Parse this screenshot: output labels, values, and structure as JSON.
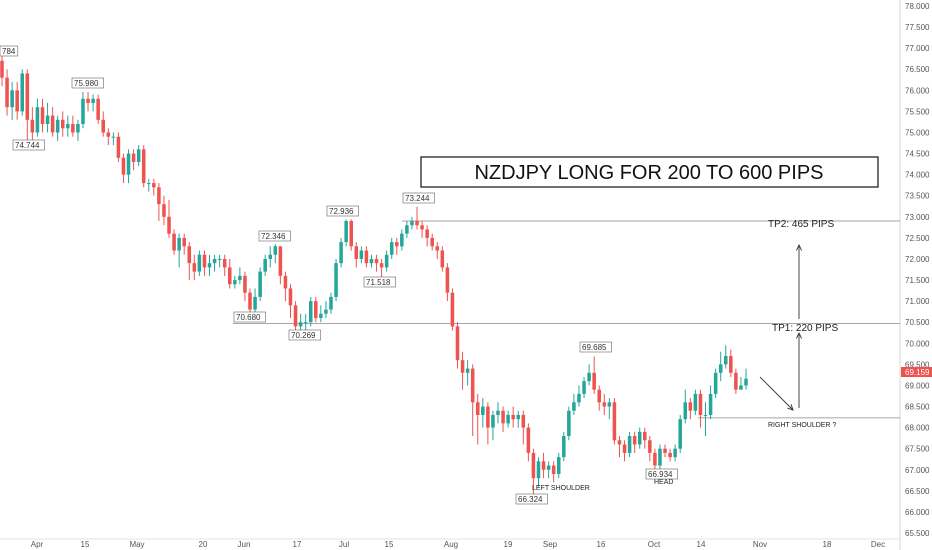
{
  "chart_data": {
    "type": "candlestick",
    "title": "NZDJPY LONG FOR 200 TO 600 PIPS",
    "symbol": "NZDJPY",
    "ylim": [
      65.5,
      78.0
    ],
    "y_ticks": [
      "65.500",
      "66.000",
      "66.500",
      "67.000",
      "67.500",
      "68.000",
      "68.500",
      "69.000",
      "69.500",
      "70.000",
      "70.500",
      "71.000",
      "71.500",
      "72.000",
      "72.500",
      "73.000",
      "73.500",
      "74.000",
      "74.500",
      "75.000",
      "75.500",
      "76.000",
      "76.500",
      "77.000",
      "77.500",
      "78.000"
    ],
    "x_ticks": [
      "Apr",
      "15",
      "May",
      "20",
      "Jun",
      "17",
      "Jul",
      "15",
      "Aug",
      "19",
      "Sep",
      "16",
      "Oct",
      "14",
      "Nov",
      "18",
      "Dec"
    ],
    "last_price": "69.159",
    "up_color": "#26a69a",
    "down_color": "#ef5350",
    "candles": [
      [
        76.7,
        76.3,
        76.85,
        76.1
      ],
      [
        76.3,
        75.6,
        76.5,
        75.4
      ],
      [
        75.6,
        76.0,
        76.2,
        75.3
      ],
      [
        76.0,
        75.5,
        76.2,
        75.3
      ],
      [
        75.5,
        76.4,
        76.5,
        75.4
      ],
      [
        76.4,
        75.3,
        76.5,
        74.8
      ],
      [
        75.3,
        75.0,
        75.6,
        74.75
      ],
      [
        75.0,
        75.6,
        75.8,
        74.9
      ],
      [
        75.6,
        75.2,
        75.8,
        75.0
      ],
      [
        75.2,
        75.4,
        75.7,
        75.0
      ],
      [
        75.4,
        75.0,
        75.6,
        74.9
      ],
      [
        75.0,
        75.3,
        75.4,
        74.8
      ],
      [
        75.3,
        75.1,
        75.5,
        74.9
      ],
      [
        75.1,
        75.2,
        75.4,
        74.9
      ],
      [
        75.2,
        75.0,
        75.4,
        74.9
      ],
      [
        75.0,
        75.2,
        75.3,
        74.8
      ],
      [
        75.2,
        75.8,
        75.96,
        75.1
      ],
      [
        75.8,
        75.7,
        75.96,
        75.5
      ],
      [
        75.7,
        75.8,
        75.9,
        75.5
      ],
      [
        75.8,
        75.3,
        75.9,
        75.2
      ],
      [
        75.3,
        75.0,
        75.5,
        74.9
      ],
      [
        75.0,
        74.9,
        75.1,
        74.7
      ],
      [
        74.9,
        74.9,
        75.0,
        74.7
      ],
      [
        74.9,
        74.4,
        75.0,
        74.3
      ],
      [
        74.4,
        74.0,
        74.5,
        73.8
      ],
      [
        74.0,
        74.5,
        74.6,
        73.8
      ],
      [
        74.5,
        74.3,
        74.6,
        74.1
      ],
      [
        74.3,
        74.6,
        74.7,
        74.2
      ],
      [
        74.6,
        73.8,
        74.7,
        73.7
      ],
      [
        73.8,
        73.8,
        73.9,
        73.6
      ],
      [
        73.8,
        73.7,
        73.9,
        73.5
      ],
      [
        73.7,
        73.3,
        73.8,
        72.9
      ],
      [
        73.3,
        73.0,
        73.5,
        72.8
      ],
      [
        73.0,
        72.6,
        73.4,
        72.5
      ],
      [
        72.6,
        72.2,
        72.7,
        72.1
      ],
      [
        72.2,
        72.5,
        72.6,
        71.8
      ],
      [
        72.5,
        72.3,
        72.6,
        72.1
      ],
      [
        72.3,
        71.9,
        72.4,
        71.5
      ],
      [
        71.9,
        71.7,
        72.1,
        71.5
      ],
      [
        71.7,
        72.1,
        72.2,
        71.6
      ],
      [
        72.1,
        71.8,
        72.2,
        71.6
      ],
      [
        71.8,
        71.9,
        72.1,
        71.6
      ],
      [
        71.9,
        72.0,
        72.1,
        71.7
      ],
      [
        72.0,
        72.0,
        72.1,
        71.8
      ],
      [
        72.0,
        71.8,
        72.1,
        71.6
      ],
      [
        71.8,
        71.4,
        72.0,
        71.3
      ],
      [
        71.4,
        71.5,
        71.6,
        71.3
      ],
      [
        71.5,
        71.6,
        71.8,
        71.4
      ],
      [
        71.6,
        71.2,
        71.7,
        71.0
      ],
      [
        71.2,
        70.8,
        71.3,
        70.68
      ],
      [
        70.8,
        71.1,
        71.3,
        70.7
      ],
      [
        71.1,
        71.7,
        71.8,
        71.0
      ],
      [
        71.7,
        72.0,
        72.1,
        71.6
      ],
      [
        72.0,
        72.1,
        72.3,
        71.8
      ],
      [
        72.1,
        72.3,
        72.35,
        71.9
      ],
      [
        72.3,
        71.6,
        72.3,
        71.4
      ],
      [
        71.6,
        71.3,
        71.7,
        71.0
      ],
      [
        71.3,
        70.9,
        71.4,
        70.6
      ],
      [
        70.9,
        70.4,
        71.0,
        70.27
      ],
      [
        70.4,
        70.5,
        70.7,
        70.3
      ],
      [
        70.5,
        70.5,
        70.7,
        70.3
      ],
      [
        70.5,
        71.0,
        71.1,
        70.4
      ],
      [
        71.0,
        70.6,
        71.1,
        70.5
      ],
      [
        70.6,
        70.7,
        70.9,
        70.5
      ],
      [
        70.7,
        70.8,
        71.0,
        70.6
      ],
      [
        70.8,
        71.1,
        71.2,
        70.7
      ],
      [
        71.1,
        71.9,
        72.0,
        71.0
      ],
      [
        71.9,
        72.4,
        72.5,
        71.8
      ],
      [
        72.4,
        72.9,
        72.94,
        72.3
      ],
      [
        72.9,
        72.3,
        72.94,
        72.2
      ],
      [
        72.3,
        72.0,
        72.4,
        71.8
      ],
      [
        72.0,
        72.2,
        72.3,
        71.9
      ],
      [
        72.2,
        71.9,
        72.3,
        71.8
      ],
      [
        71.9,
        72.0,
        72.1,
        71.8
      ],
      [
        72.0,
        71.9,
        72.1,
        71.7
      ],
      [
        71.9,
        71.8,
        72.0,
        71.5
      ],
      [
        71.8,
        72.1,
        72.2,
        71.7
      ],
      [
        72.1,
        72.4,
        72.5,
        72.0
      ],
      [
        72.4,
        72.3,
        72.5,
        72.1
      ],
      [
        72.3,
        72.6,
        72.7,
        72.2
      ],
      [
        72.6,
        72.8,
        72.9,
        72.5
      ],
      [
        72.8,
        72.9,
        73.0,
        72.7
      ],
      [
        72.9,
        72.8,
        73.24,
        72.7
      ],
      [
        72.8,
        72.7,
        72.9,
        72.5
      ],
      [
        72.7,
        72.5,
        72.8,
        72.3
      ],
      [
        72.5,
        72.3,
        72.6,
        72.2
      ],
      [
        72.3,
        72.2,
        72.4,
        72.0
      ],
      [
        72.2,
        71.8,
        72.3,
        71.7
      ],
      [
        71.8,
        71.2,
        71.9,
        71.0
      ],
      [
        71.2,
        70.4,
        71.3,
        70.3
      ],
      [
        70.4,
        69.6,
        70.5,
        69.4
      ],
      [
        69.6,
        69.3,
        69.8,
        68.9
      ],
      [
        69.3,
        69.4,
        69.6,
        69.0
      ],
      [
        69.4,
        68.6,
        69.5,
        67.8
      ],
      [
        68.6,
        68.3,
        68.8,
        67.6
      ],
      [
        68.3,
        68.5,
        68.7,
        68.0
      ],
      [
        68.5,
        68.0,
        68.6,
        67.6
      ],
      [
        68.0,
        68.3,
        68.4,
        67.7
      ],
      [
        68.3,
        68.4,
        68.6,
        68.1
      ],
      [
        68.4,
        68.1,
        68.5,
        67.9
      ],
      [
        68.1,
        68.3,
        68.4,
        68.0
      ],
      [
        68.3,
        68.2,
        68.5,
        68.0
      ],
      [
        68.2,
        68.3,
        68.4,
        68.0
      ],
      [
        68.3,
        68.0,
        68.4,
        67.6
      ],
      [
        68.0,
        67.4,
        68.1,
        67.2
      ],
      [
        67.4,
        66.8,
        67.5,
        66.32
      ],
      [
        66.8,
        67.2,
        67.3,
        66.6
      ],
      [
        67.2,
        67.0,
        67.4,
        66.8
      ],
      [
        67.0,
        67.1,
        67.2,
        66.8
      ],
      [
        67.1,
        66.9,
        67.2,
        66.7
      ],
      [
        66.9,
        67.3,
        67.4,
        66.8
      ],
      [
        67.3,
        67.8,
        67.9,
        67.2
      ],
      [
        67.8,
        68.4,
        68.5,
        67.7
      ],
      [
        68.4,
        68.6,
        68.8,
        68.3
      ],
      [
        68.6,
        68.8,
        69.0,
        68.5
      ],
      [
        68.8,
        69.1,
        69.2,
        68.7
      ],
      [
        69.1,
        69.3,
        69.5,
        69.0
      ],
      [
        69.3,
        68.9,
        69.685,
        68.8
      ],
      [
        68.9,
        68.6,
        69.0,
        68.4
      ],
      [
        68.6,
        68.5,
        68.8,
        68.3
      ],
      [
        68.5,
        68.6,
        68.7,
        68.2
      ],
      [
        68.6,
        67.7,
        68.7,
        67.6
      ],
      [
        67.7,
        67.6,
        67.8,
        67.3
      ],
      [
        67.6,
        67.4,
        67.7,
        67.2
      ],
      [
        67.4,
        67.8,
        67.9,
        67.3
      ],
      [
        67.8,
        67.6,
        67.9,
        67.4
      ],
      [
        67.6,
        67.9,
        68.0,
        67.5
      ],
      [
        67.9,
        67.7,
        68.0,
        67.5
      ],
      [
        67.7,
        67.4,
        67.8,
        67.2
      ],
      [
        67.4,
        67.1,
        67.5,
        66.93
      ],
      [
        67.1,
        67.5,
        67.6,
        67.0
      ],
      [
        67.5,
        67.4,
        67.6,
        67.3
      ],
      [
        67.4,
        67.3,
        67.5,
        67.2
      ],
      [
        67.3,
        67.5,
        67.6,
        67.2
      ],
      [
        67.5,
        68.2,
        68.3,
        67.4
      ],
      [
        68.2,
        68.6,
        68.9,
        68.1
      ],
      [
        68.6,
        68.4,
        68.7,
        68.2
      ],
      [
        68.4,
        68.8,
        68.9,
        68.3
      ],
      [
        68.8,
        68.3,
        68.9,
        68.0
      ],
      [
        68.3,
        68.3,
        68.6,
        67.8
      ],
      [
        68.3,
        68.8,
        69.0,
        68.2
      ],
      [
        68.8,
        69.3,
        69.4,
        68.7
      ],
      [
        69.3,
        69.5,
        69.8,
        69.1
      ],
      [
        69.5,
        69.7,
        69.95,
        69.4
      ],
      [
        69.7,
        69.3,
        69.85,
        69.2
      ],
      [
        69.3,
        68.9,
        69.4,
        68.8
      ],
      [
        68.9,
        69.0,
        69.2,
        68.9
      ],
      [
        69.0,
        69.16,
        69.4,
        68.9
      ]
    ],
    "price_labels": [
      {
        "label": "784",
        "value": 76.784
      },
      {
        "label": "75.980",
        "value": 75.98
      },
      {
        "label": "74.744",
        "value": 74.744
      },
      {
        "label": "72.346",
        "value": 72.346
      },
      {
        "label": "72.936",
        "value": 72.936
      },
      {
        "label": "73.244",
        "value": 73.244
      },
      {
        "label": "71.518",
        "value": 71.518
      },
      {
        "label": "70.680",
        "value": 70.68
      },
      {
        "label": "70.269",
        "value": 70.269
      },
      {
        "label": "69.685",
        "value": 69.685
      },
      {
        "label": "66.324",
        "value": 66.324
      },
      {
        "label": "66.934",
        "value": 66.934
      }
    ],
    "levels": {
      "tp2": 72.9,
      "tp1": 70.47,
      "neckline": 68.23
    },
    "annotations": {
      "tp2": "TP2: 465 PIPS",
      "tp1": "TP1: 220 PIPS",
      "left_shoulder": "LEFT SHOULDER",
      "head": "HEAD",
      "right_shoulder": "RIGHT SHOULDER ?"
    },
    "grid": false
  }
}
